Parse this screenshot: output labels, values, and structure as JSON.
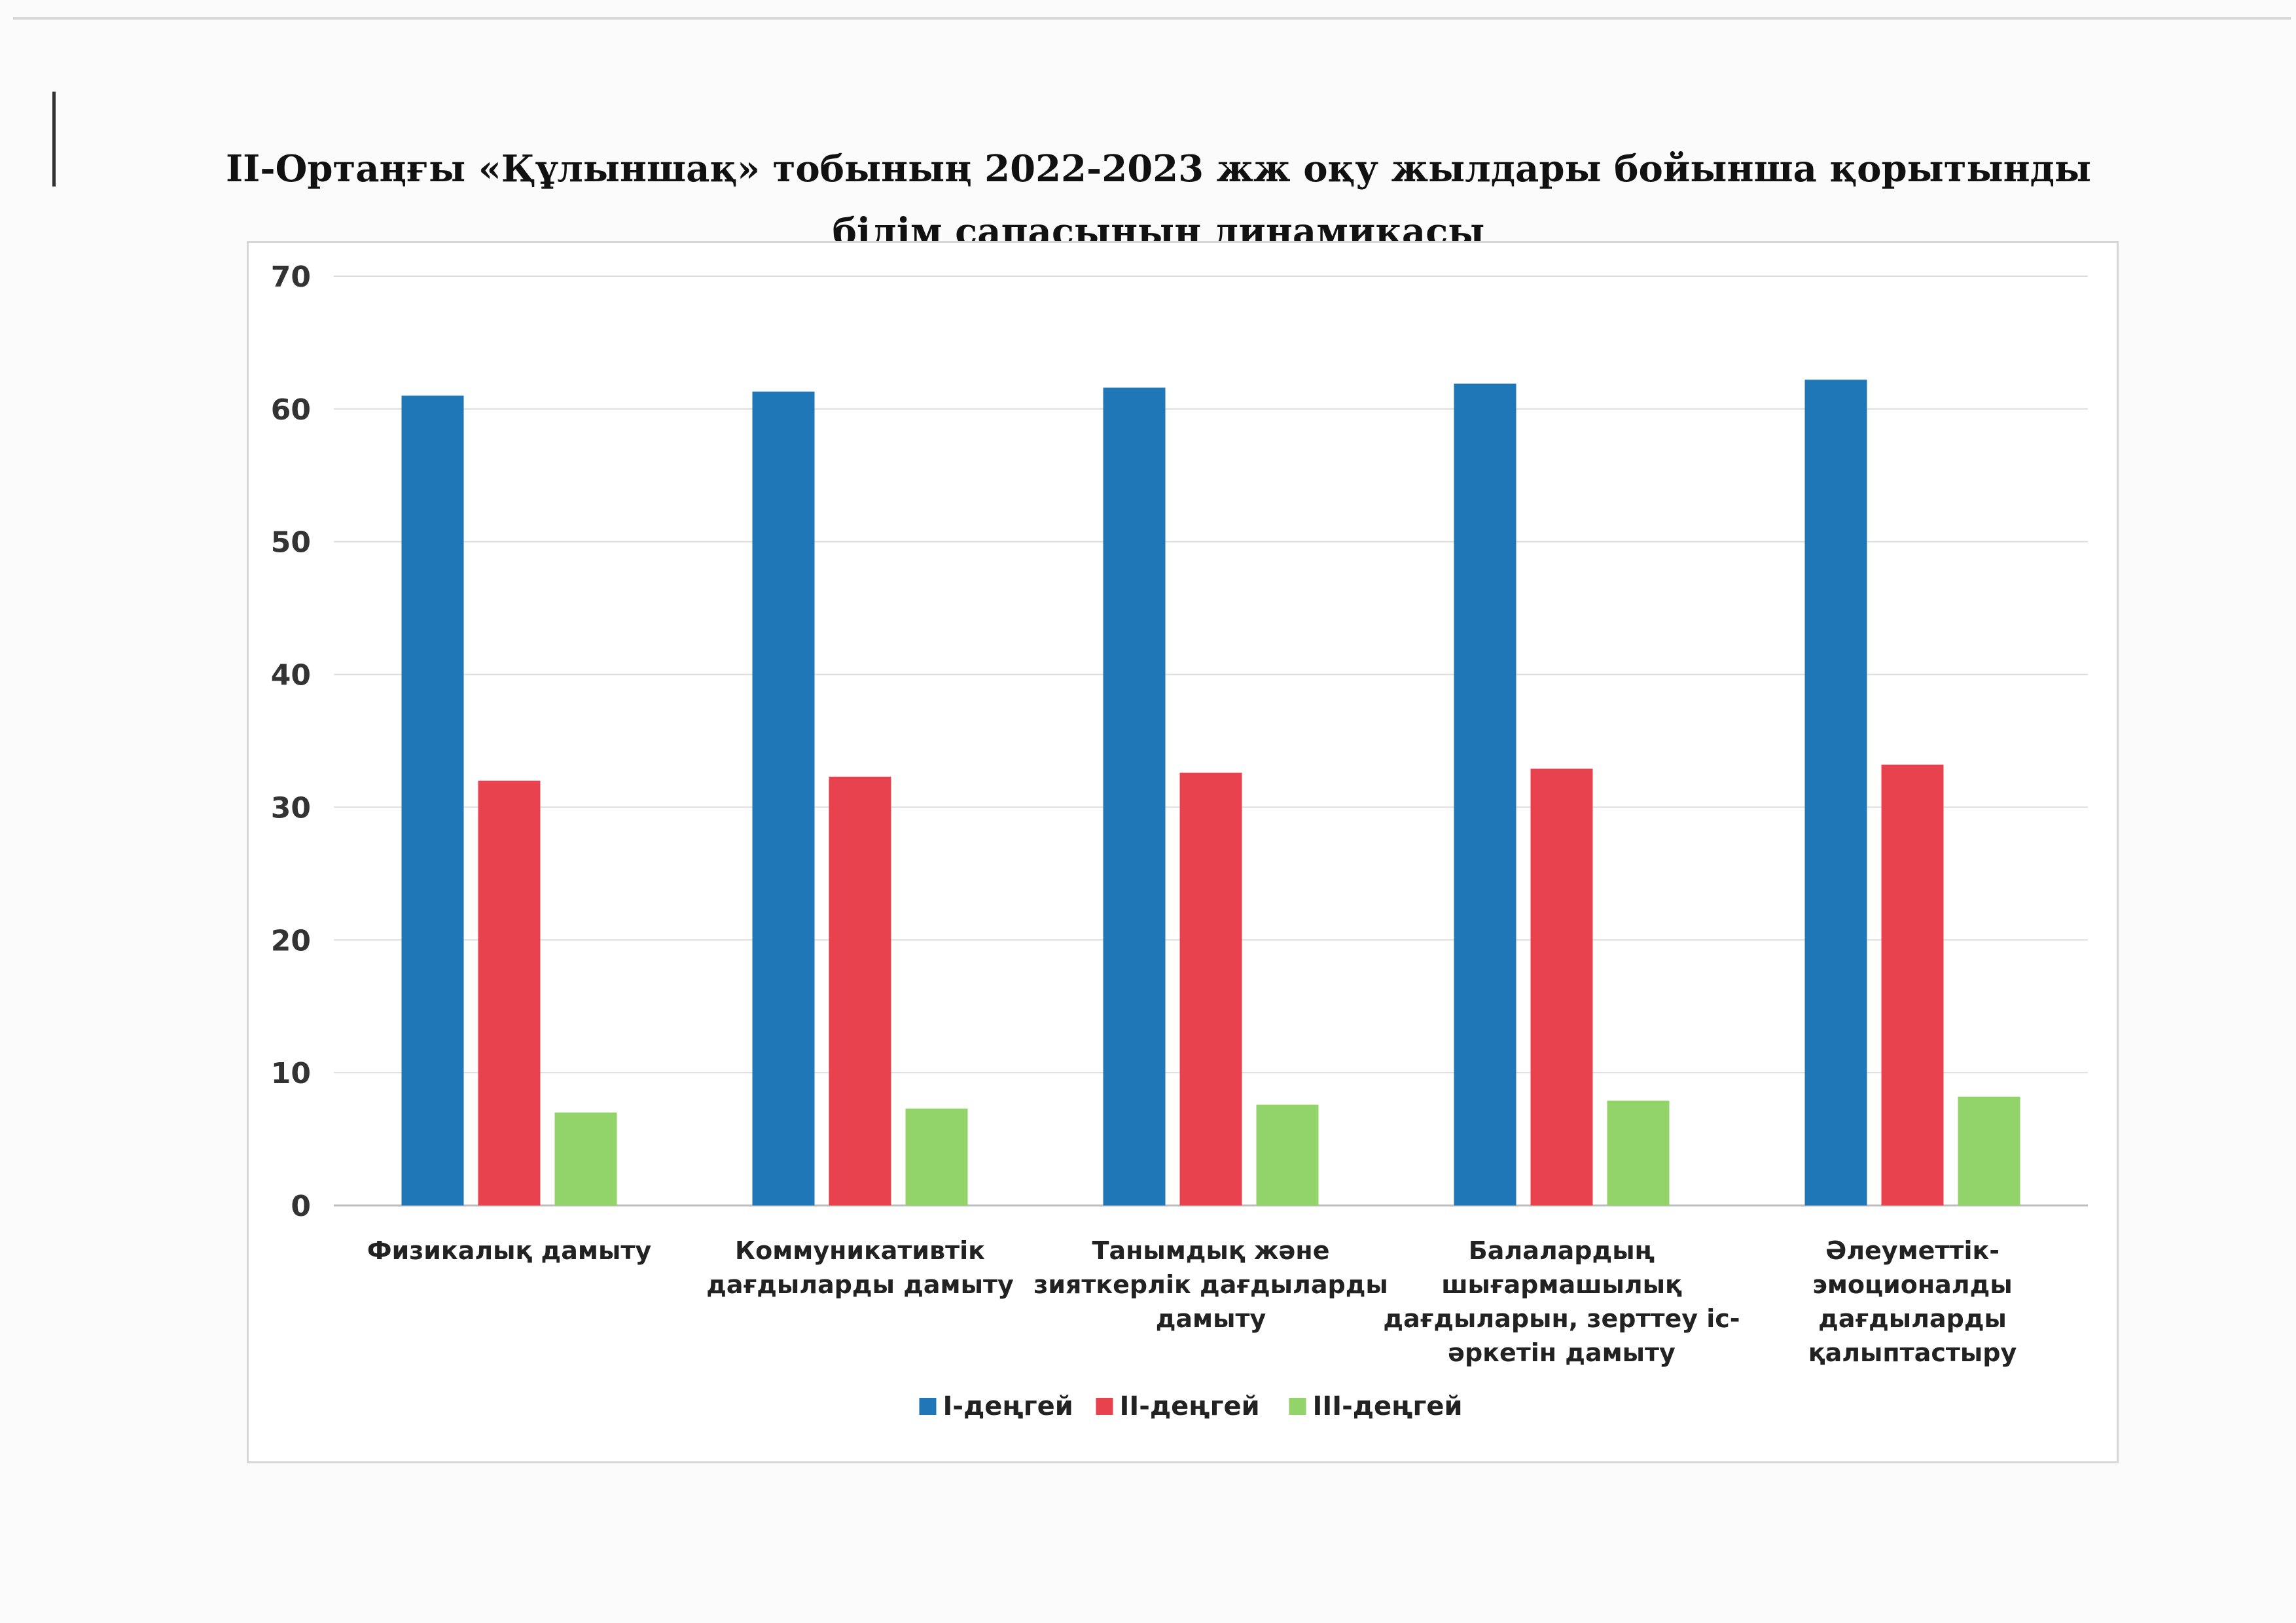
{
  "page_title": "II-Ортаңғы «Құлыншақ» тобының 2022-2023 жж оқу жылдары бойынша қорытынды білім сапасының динамикасы",
  "chart_data": {
    "type": "bar",
    "title": "",
    "xlabel": "",
    "ylabel": "",
    "ylim": [
      0,
      70
    ],
    "ytick_step": 10,
    "grid": true,
    "legend_position": "bottom",
    "categories": [
      [
        "Физикалық дамыту"
      ],
      [
        "Коммуникативтік",
        "дағдыларды дамыту"
      ],
      [
        "Танымдық және",
        "зияткерлік дағдыларды",
        "дамыту"
      ],
      [
        "Балалардың",
        "шығармашылық",
        "дағдыларын, зерттеу іс-",
        "әркетін дамыту"
      ],
      [
        "Әлеуметтік-",
        "эмоционалды",
        "дағдыларды",
        "қалыптастыру"
      ]
    ],
    "series": [
      {
        "name": "I-деңгей",
        "color": "#1f77b8",
        "values": [
          61,
          61.3,
          61.6,
          61.9,
          62.2
        ]
      },
      {
        "name": "II-деңгей",
        "color": "#e8424f",
        "values": [
          32,
          32.3,
          32.6,
          32.9,
          33.2
        ]
      },
      {
        "name": "III-деңгей",
        "color": "#92d36a",
        "values": [
          7,
          7.3,
          7.6,
          7.9,
          8.2
        ]
      }
    ]
  }
}
